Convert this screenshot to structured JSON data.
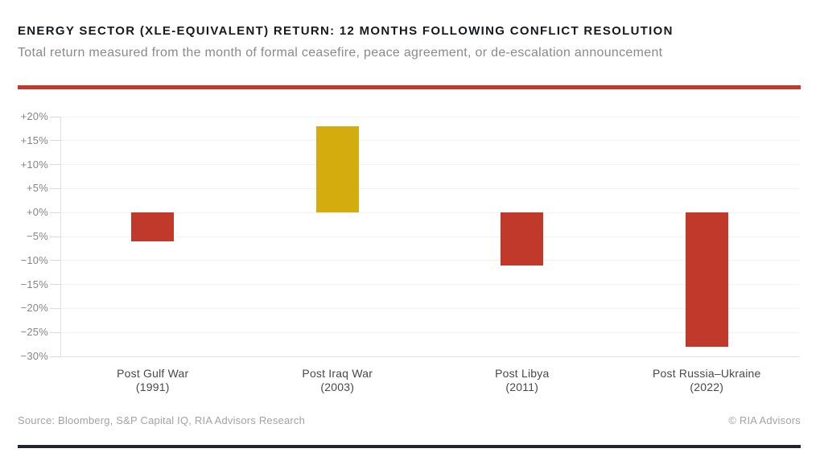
{
  "header": {
    "title": "ENERGY SECTOR (XLE-EQUIVALENT) RETURN: 12 MONTHS FOLLOWING CONFLICT RESOLUTION",
    "subtitle": "Total return measured from the month of formal ceasefire, peace agreement, or de-escalation announcement"
  },
  "chart_data": {
    "type": "bar",
    "categories": [
      "Post Gulf War",
      "Post Iraq War",
      "Post Libya",
      "Post Russia–Ukraine"
    ],
    "category_sublabels": [
      "(1991)",
      "(2003)",
      "(2011)",
      "(2022)"
    ],
    "values": [
      -6,
      18,
      -11,
      -28
    ],
    "title": "ENERGY SECTOR (XLE-EQUIVALENT) RETURN: 12 MONTHS FOLLOWING CONFLICT RESOLUTION",
    "xlabel": "",
    "ylabel": "",
    "ylim": [
      -30,
      20
    ],
    "ytick_step": 5,
    "ytick_labels": [
      "+20%",
      "+15%",
      "+10%",
      "+5%",
      "+0%",
      "−5%",
      "−10%",
      "−15%",
      "−20%",
      "−25%",
      "−30%"
    ],
    "grid": true,
    "legend": "none",
    "colors": {
      "positive": "#d4ac0d",
      "negative": "#c0392b"
    }
  },
  "footer": {
    "source": "Source: Bloomberg, S&P Capital IQ, RIA Advisors Research",
    "copyright": "© RIA Advisors"
  },
  "colors": {
    "accent_rule": "#c0392b",
    "bottom_bar": "#21252e"
  }
}
